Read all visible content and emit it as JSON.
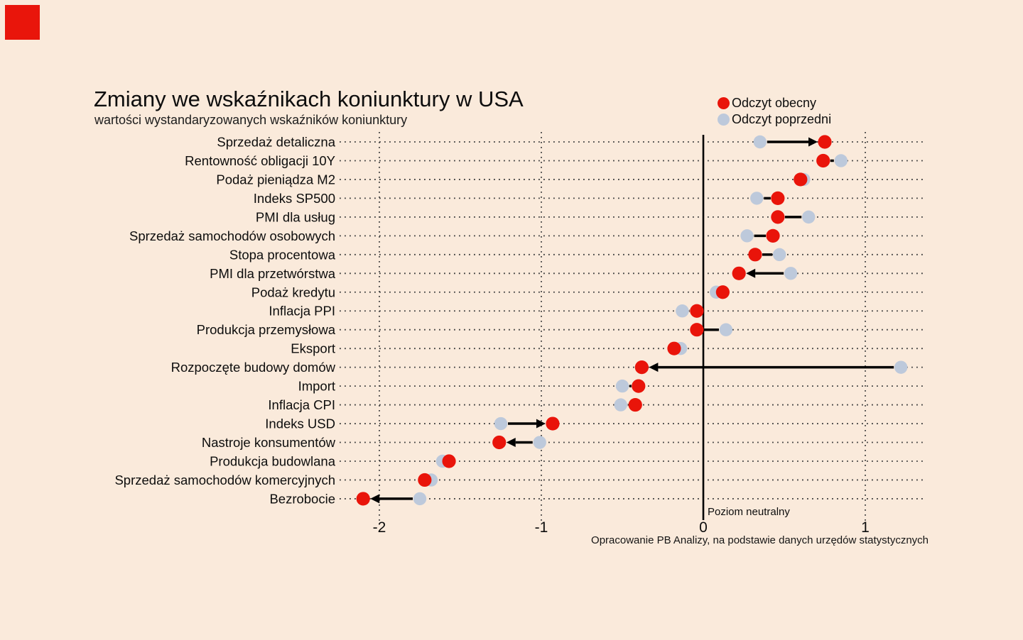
{
  "logo": {
    "color": "#e9150b"
  },
  "chart_data": {
    "type": "dumbbell-dot-plot",
    "title": "Zmiany we wskaźnikach koniunktury w USA",
    "subtitle": "wartości wystandaryzowanych wskaźników koniunktury",
    "source_note": "Opracowanie PB Analizy, na podstawie danych urzędów statystycznych",
    "legend": [
      {
        "name": "Odczyt obecny",
        "color": "#e9140a"
      },
      {
        "name": "Odczyt poprzedni",
        "color": "#bdc9db"
      }
    ],
    "colors": {
      "background": "#faeadb",
      "grid": "#3c3c3c",
      "arrow": "#000000",
      "text": "#0d0d0d"
    },
    "x_ticks": [
      -2,
      -1,
      0,
      1
    ],
    "xlim": [
      -2.24,
      1.37
    ],
    "grid": "dotted",
    "neutral_line": {
      "value": 0,
      "label": "Poziom neutralny"
    },
    "categories": [
      "Sprzedaż detaliczna",
      "Rentowność obligacji 10Y",
      "Podaż pieniądza M2",
      "Indeks SP500",
      "PMI dla usług",
      "Sprzedaż samochodów osobowych",
      "Stopa procentowa",
      "PMI dla przetwórstwa",
      "Podaż kredytu",
      "Inflacja PPI",
      "Produkcja przemysłowa",
      "Eksport",
      "Rozpoczęte budowy domów",
      "Import",
      "Inflacja CPI",
      "Indeks USD",
      "Nastroje konsumentów",
      "Produkcja budowlana",
      "Sprzedaż samochodów komercyjnych",
      "Bezrobocie"
    ],
    "series": [
      {
        "name": "Odczyt obecny",
        "values": [
          0.75,
          0.74,
          0.6,
          0.46,
          0.46,
          0.43,
          0.32,
          0.22,
          0.12,
          -0.04,
          -0.04,
          -0.18,
          -0.38,
          -0.4,
          -0.42,
          -0.93,
          -1.26,
          -1.57,
          -1.72,
          -2.1
        ]
      },
      {
        "name": "Odczyt poprzedni",
        "values": [
          0.35,
          0.85,
          0.62,
          0.33,
          0.65,
          0.27,
          0.47,
          0.54,
          0.08,
          -0.13,
          0.14,
          -0.14,
          1.22,
          -0.5,
          -0.51,
          -1.25,
          -1.01,
          -1.61,
          -1.68,
          -1.75
        ]
      }
    ],
    "arrows": [
      true,
      false,
      false,
      false,
      false,
      false,
      false,
      true,
      false,
      false,
      false,
      false,
      true,
      false,
      false,
      true,
      true,
      false,
      false,
      true
    ]
  }
}
